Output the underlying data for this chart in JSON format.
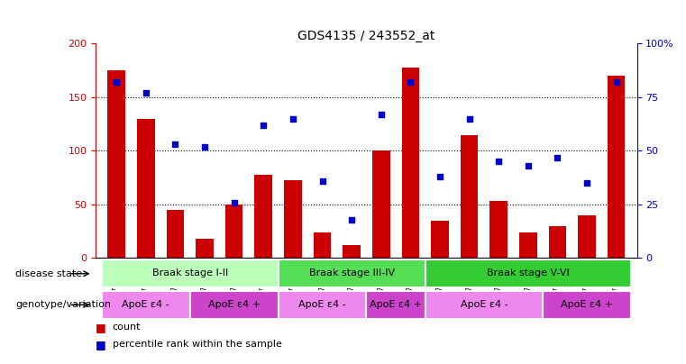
{
  "title": "GDS4135 / 243552_at",
  "samples": [
    "GSM735097",
    "GSM735098",
    "GSM735099",
    "GSM735094",
    "GSM735095",
    "GSM735096",
    "GSM735103",
    "GSM735104",
    "GSM735105",
    "GSM735100",
    "GSM735101",
    "GSM735102",
    "GSM735109",
    "GSM735110",
    "GSM735111",
    "GSM735106",
    "GSM735107",
    "GSM735108"
  ],
  "bar_values": [
    175,
    130,
    45,
    18,
    50,
    78,
    73,
    24,
    12,
    100,
    178,
    35,
    115,
    53,
    24,
    30,
    40,
    170
  ],
  "dot_values": [
    82,
    77,
    53,
    52,
    26,
    62,
    65,
    36,
    18,
    67,
    82,
    38,
    65,
    45,
    43,
    47,
    35,
    82
  ],
  "bar_color": "#cc0000",
  "dot_color": "#0000cc",
  "ylim_left": [
    0,
    200
  ],
  "ylim_right": [
    0,
    100
  ],
  "yticks_left": [
    0,
    50,
    100,
    150,
    200
  ],
  "yticks_right": [
    0,
    25,
    50,
    75,
    100
  ],
  "ytick_labels_right": [
    "0",
    "25",
    "50",
    "75",
    "100%"
  ],
  "disease_stages": [
    {
      "label": "Braak stage I-II",
      "start": 0,
      "end": 6,
      "color": "#bbffbb"
    },
    {
      "label": "Braak stage III-IV",
      "start": 6,
      "end": 11,
      "color": "#55dd55"
    },
    {
      "label": "Braak stage V-VI",
      "start": 11,
      "end": 18,
      "color": "#33cc33"
    }
  ],
  "genotype_groups": [
    {
      "label": "ApoE ε4 -",
      "start": 0,
      "end": 3,
      "color": "#ee88ee"
    },
    {
      "label": "ApoE ε4 +",
      "start": 3,
      "end": 6,
      "color": "#cc44cc"
    },
    {
      "label": "ApoE ε4 -",
      "start": 6,
      "end": 9,
      "color": "#ee88ee"
    },
    {
      "label": "ApoE ε4 +",
      "start": 9,
      "end": 11,
      "color": "#cc44cc"
    },
    {
      "label": "ApoE ε4 -",
      "start": 11,
      "end": 15,
      "color": "#ee88ee"
    },
    {
      "label": "ApoE ε4 +",
      "start": 15,
      "end": 18,
      "color": "#cc44cc"
    }
  ],
  "legend_count_label": "count",
  "legend_pct_label": "percentile rank within the sample",
  "disease_state_label": "disease state",
  "genotype_label": "genotype/variation",
  "bar_width": 0.6,
  "n_samples": 18
}
